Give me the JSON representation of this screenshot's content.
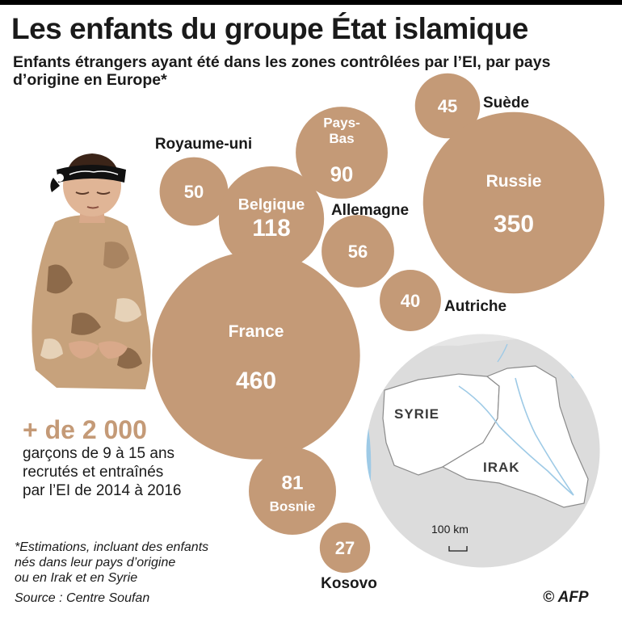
{
  "title": "Les enfants du groupe État islamique",
  "subtitle": "Enfants étrangers ayant été dans les zones contrôlées par l’EI, par pays d’origine en Europe*",
  "colors": {
    "bubble": "#c49a77",
    "accent_text": "#c49a77",
    "map_land": "#ffffff",
    "map_outside": "#dcdcdc",
    "water": "#9ecae6"
  },
  "chart_data": {
    "type": "bubble",
    "unit": "",
    "points": [
      {
        "country": "Suède",
        "value": 45
      },
      {
        "country": "Pays-Bas",
        "value": 90
      },
      {
        "country": "Royaume-uni",
        "value": 50
      },
      {
        "country": "Belgique",
        "value": 118
      },
      {
        "country": "Allemagne",
        "value": 56
      },
      {
        "country": "Russie",
        "value": 350
      },
      {
        "country": "Autriche",
        "value": 40
      },
      {
        "country": "France",
        "value": 460
      },
      {
        "country": "Bosnie",
        "value": 81
      },
      {
        "country": "Kosovo",
        "value": 27
      }
    ]
  },
  "stat": {
    "big": "+ de 2 000",
    "lines": [
      "garçons de 9 à 15 ans",
      "recrutés et entraînés",
      "par l’EI de 2014 à 2016"
    ]
  },
  "map": {
    "labels": [
      "SYRIE",
      "IRAK"
    ],
    "scale": "100 km"
  },
  "note_lines": [
    "*Estimations, incluant des enfants",
    "nés dans leur pays d’origine",
    "ou en Irak et en Syrie"
  ],
  "source": "Source : Centre Soufan",
  "credit": "© AFP"
}
